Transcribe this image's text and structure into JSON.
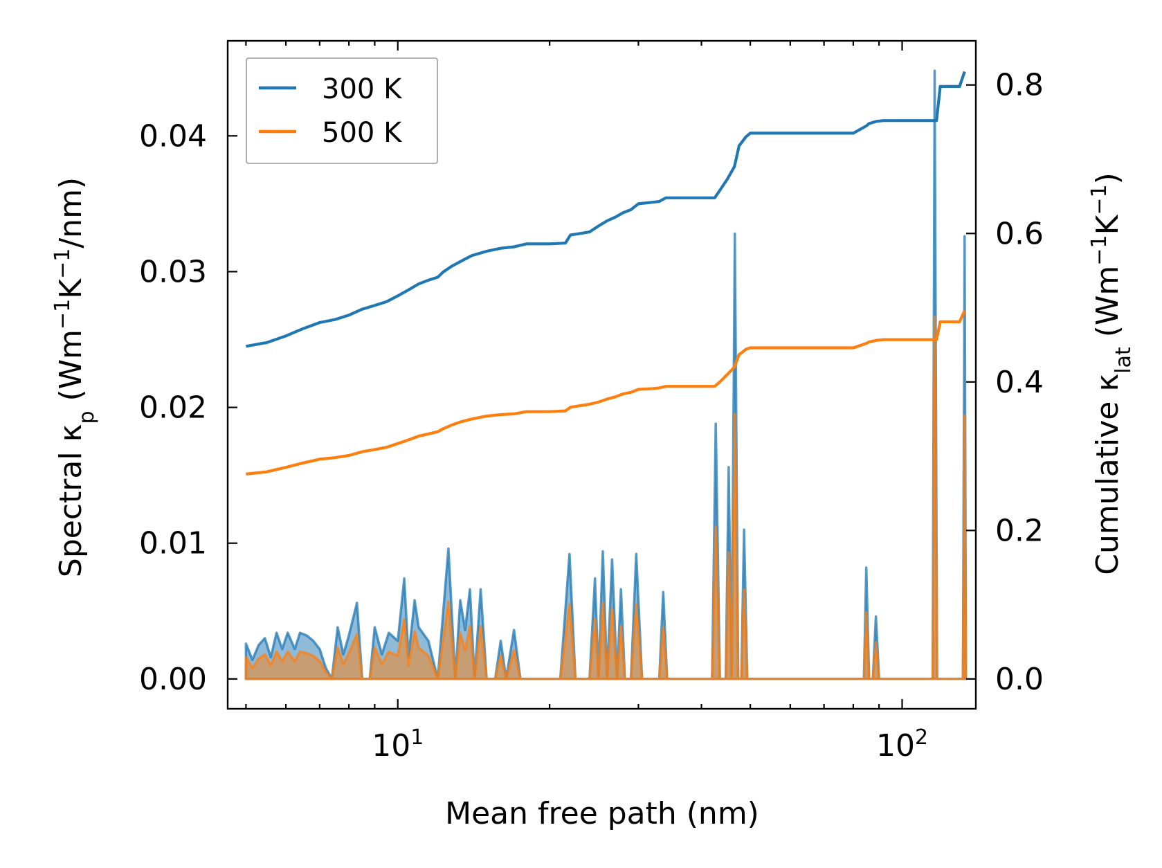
{
  "chart_data": {
    "type": "line",
    "title": "",
    "xlabel": "Mean free path (nm)",
    "ylabel_left": "Spectral κp (Wm⁻¹K⁻¹/nm)",
    "ylabel_right": "Cumulative κlat (Wm⁻¹K⁻¹)",
    "xscale": "log",
    "xlim": [
      4.6,
      140
    ],
    "ylim_left": [
      -0.0022,
      0.047
    ],
    "ylim_right": [
      -0.0402,
      0.8594
    ],
    "x_ticks": [
      {
        "value": 10,
        "base": "10",
        "exp": "1"
      },
      {
        "value": 100,
        "base": "10",
        "exp": "2"
      }
    ],
    "y_ticks_left": [
      {
        "value": 0.0,
        "label": "0.00"
      },
      {
        "value": 0.01,
        "label": "0.01"
      },
      {
        "value": 0.02,
        "label": "0.02"
      },
      {
        "value": 0.03,
        "label": "0.03"
      },
      {
        "value": 0.04,
        "label": "0.04"
      }
    ],
    "y_ticks_right": [
      {
        "value": 0.0,
        "label": "0.0"
      },
      {
        "value": 0.2,
        "label": "0.2"
      },
      {
        "value": 0.4,
        "label": "0.4"
      },
      {
        "value": 0.6,
        "label": "0.6"
      },
      {
        "value": 0.8,
        "label": "0.8"
      }
    ],
    "legend": {
      "position": "top-left",
      "entries": [
        {
          "label": "300 K",
          "color": "#1f77b4"
        },
        {
          "label": "500 K",
          "color": "#ff7f0e"
        }
      ]
    },
    "cumulative_series": [
      {
        "name": "300 K",
        "color": "#1f77b4",
        "x": [
          5.0,
          5.5,
          6.0,
          6.5,
          7.0,
          7.5,
          8.0,
          8.5,
          9.0,
          9.5,
          10.0,
          10.5,
          11.0,
          11.5,
          12.0,
          12.3,
          12.8,
          13.3,
          14.0,
          15.0,
          16.0,
          17.0,
          18.0,
          20.0,
          21.5,
          22.0,
          23.0,
          24.0,
          25.0,
          26.0,
          27.0,
          28.0,
          29.0,
          30.0,
          32.0,
          33.0,
          34.0,
          40.0,
          42.5,
          43.5,
          45.0,
          46.5,
          47.5,
          48.0,
          49.0,
          50.0,
          55.0,
          60.0,
          70.0,
          80.0,
          85.0,
          86.0,
          89.0,
          92.0,
          100.0,
          117.0,
          119.0,
          121.0,
          130.0,
          133.0
        ],
        "cumulative": [
          0.448,
          0.453,
          0.462,
          0.472,
          0.48,
          0.484,
          0.49,
          0.498,
          0.503,
          0.508,
          0.516,
          0.524,
          0.532,
          0.537,
          0.541,
          0.548,
          0.556,
          0.562,
          0.57,
          0.576,
          0.58,
          0.582,
          0.586,
          0.586,
          0.587,
          0.598,
          0.6,
          0.602,
          0.61,
          0.617,
          0.622,
          0.628,
          0.632,
          0.64,
          0.642,
          0.643,
          0.648,
          0.648,
          0.648,
          0.658,
          0.673,
          0.69,
          0.718,
          0.722,
          0.73,
          0.735,
          0.735,
          0.735,
          0.735,
          0.735,
          0.745,
          0.748,
          0.751,
          0.752,
          0.752,
          0.752,
          0.798,
          0.798,
          0.798,
          0.818
        ]
      },
      {
        "name": "500 K",
        "color": "#ff7f0e",
        "x": [
          5.0,
          5.5,
          6.0,
          6.5,
          7.0,
          7.5,
          8.0,
          8.5,
          9.0,
          9.5,
          10.0,
          10.5,
          11.0,
          11.5,
          12.0,
          12.3,
          12.8,
          13.3,
          14.0,
          15.0,
          16.0,
          17.0,
          18.0,
          20.0,
          21.5,
          22.0,
          23.0,
          24.0,
          25.0,
          26.0,
          27.0,
          28.0,
          29.0,
          30.0,
          32.0,
          33.0,
          34.0,
          40.0,
          42.5,
          43.5,
          45.0,
          46.5,
          47.5,
          48.0,
          49.0,
          50.0,
          55.0,
          60.0,
          70.0,
          80.0,
          85.0,
          86.0,
          89.0,
          92.0,
          100.0,
          117.0,
          119.0,
          121.0,
          130.0,
          133.0
        ],
        "cumulative": [
          0.276,
          0.279,
          0.285,
          0.291,
          0.296,
          0.298,
          0.301,
          0.306,
          0.309,
          0.312,
          0.317,
          0.322,
          0.327,
          0.33,
          0.333,
          0.337,
          0.342,
          0.346,
          0.35,
          0.354,
          0.356,
          0.357,
          0.36,
          0.36,
          0.361,
          0.366,
          0.368,
          0.37,
          0.373,
          0.377,
          0.38,
          0.384,
          0.386,
          0.39,
          0.391,
          0.392,
          0.394,
          0.394,
          0.394,
          0.4,
          0.41,
          0.42,
          0.437,
          0.439,
          0.444,
          0.446,
          0.446,
          0.446,
          0.446,
          0.446,
          0.452,
          0.454,
          0.456,
          0.457,
          0.457,
          0.457,
          0.481,
          0.481,
          0.481,
          0.496
        ]
      }
    ],
    "spectral_series": [
      {
        "name": "300 K",
        "color": "#1f77b4",
        "fill_alpha": 0.5,
        "points": [
          [
            5.0,
            0.0026
          ],
          [
            5.15,
            0.0014
          ],
          [
            5.3,
            0.0025
          ],
          [
            5.45,
            0.003
          ],
          [
            5.6,
            0.0016
          ],
          [
            5.75,
            0.0034
          ],
          [
            5.9,
            0.0022
          ],
          [
            6.05,
            0.0034
          ],
          [
            6.25,
            0.0022
          ],
          [
            6.4,
            0.0034
          ],
          [
            6.6,
            0.0032
          ],
          [
            6.8,
            0.0028
          ],
          [
            7.0,
            0.0022
          ],
          [
            7.2,
            0.0008
          ],
          [
            7.4,
            0.0
          ],
          [
            7.6,
            0.0038
          ],
          [
            7.8,
            0.0018
          ],
          [
            8.0,
            0.0032
          ],
          [
            8.3,
            0.0056
          ],
          [
            8.5,
            0.0
          ],
          [
            8.8,
            0.0
          ],
          [
            9.0,
            0.0038
          ],
          [
            9.3,
            0.0018
          ],
          [
            9.6,
            0.0034
          ],
          [
            10.0,
            0.0028
          ],
          [
            10.3,
            0.0074
          ],
          [
            10.5,
            0.0016
          ],
          [
            10.8,
            0.0058
          ],
          [
            11.0,
            0.0038
          ],
          [
            11.5,
            0.0028
          ],
          [
            12.0,
            0.0
          ],
          [
            12.6,
            0.0096
          ],
          [
            13.0,
            0.0
          ],
          [
            13.3,
            0.0058
          ],
          [
            13.6,
            0.0036
          ],
          [
            13.9,
            0.0066
          ],
          [
            14.2,
            0.0
          ],
          [
            14.6,
            0.0066
          ],
          [
            15.0,
            0.0
          ],
          [
            15.6,
            0.0
          ],
          [
            16.0,
            0.0028
          ],
          [
            16.4,
            0.0
          ],
          [
            17.0,
            0.0036
          ],
          [
            17.5,
            0.0
          ],
          [
            21.0,
            0.0
          ],
          [
            21.9,
            0.0092
          ],
          [
            22.5,
            0.0
          ],
          [
            24.0,
            0.0
          ],
          [
            24.6,
            0.0074
          ],
          [
            25.0,
            0.0
          ],
          [
            25.5,
            0.0094
          ],
          [
            26.0,
            0.0
          ],
          [
            26.6,
            0.0088
          ],
          [
            27.2,
            0.0
          ],
          [
            27.7,
            0.0066
          ],
          [
            28.2,
            0.0
          ],
          [
            29.0,
            0.0
          ],
          [
            29.7,
            0.0092
          ],
          [
            30.5,
            0.0
          ],
          [
            33.0,
            0.0
          ],
          [
            33.6,
            0.0064
          ],
          [
            34.2,
            0.0
          ],
          [
            42.0,
            0.0
          ],
          [
            42.7,
            0.0188
          ],
          [
            43.5,
            0.0
          ],
          [
            44.7,
            0.0
          ],
          [
            45.3,
            0.0156
          ],
          [
            45.9,
            0.0
          ],
          [
            46.6,
            0.0328
          ],
          [
            47.3,
            0.0
          ],
          [
            48.0,
            0.0
          ],
          [
            48.6,
            0.011
          ],
          [
            49.3,
            0.0
          ],
          [
            84.0,
            0.0
          ],
          [
            84.9,
            0.0082
          ],
          [
            86.0,
            0.0
          ],
          [
            87.5,
            0.0
          ],
          [
            88.7,
            0.0046
          ],
          [
            90.0,
            0.0
          ],
          [
            115.0,
            0.0
          ],
          [
            116.0,
            0.0448
          ],
          [
            117.3,
            0.0
          ],
          [
            132.0,
            0.0
          ],
          [
            133.0,
            0.0326
          ],
          [
            133.8,
            0.0
          ]
        ]
      },
      {
        "name": "500 K",
        "color": "#ff7f0e",
        "fill_alpha": 0.5,
        "points": [
          [
            5.0,
            0.0016
          ],
          [
            5.15,
            0.0008
          ],
          [
            5.3,
            0.0015
          ],
          [
            5.45,
            0.0018
          ],
          [
            5.6,
            0.001
          ],
          [
            5.75,
            0.002
          ],
          [
            5.9,
            0.0013
          ],
          [
            6.05,
            0.002
          ],
          [
            6.25,
            0.0013
          ],
          [
            6.4,
            0.002
          ],
          [
            6.6,
            0.0019
          ],
          [
            6.8,
            0.0017
          ],
          [
            7.0,
            0.0013
          ],
          [
            7.2,
            0.0005
          ],
          [
            7.4,
            0.0
          ],
          [
            7.6,
            0.0023
          ],
          [
            7.8,
            0.0011
          ],
          [
            8.0,
            0.0019
          ],
          [
            8.3,
            0.0033
          ],
          [
            8.5,
            0.0
          ],
          [
            8.8,
            0.0
          ],
          [
            9.0,
            0.0023
          ],
          [
            9.3,
            0.0011
          ],
          [
            9.6,
            0.002
          ],
          [
            10.0,
            0.0017
          ],
          [
            10.3,
            0.0044
          ],
          [
            10.5,
            0.001
          ],
          [
            10.8,
            0.0035
          ],
          [
            11.0,
            0.0023
          ],
          [
            11.5,
            0.0017
          ],
          [
            12.0,
            0.0
          ],
          [
            12.6,
            0.0057
          ],
          [
            13.0,
            0.0
          ],
          [
            13.3,
            0.0034
          ],
          [
            13.6,
            0.0021
          ],
          [
            13.9,
            0.0039
          ],
          [
            14.2,
            0.0
          ],
          [
            14.6,
            0.0039
          ],
          [
            15.0,
            0.0
          ],
          [
            15.6,
            0.0
          ],
          [
            16.0,
            0.0017
          ],
          [
            16.4,
            0.0
          ],
          [
            17.0,
            0.0021
          ],
          [
            17.5,
            0.0
          ],
          [
            21.0,
            0.0
          ],
          [
            21.9,
            0.0055
          ],
          [
            22.5,
            0.0
          ],
          [
            24.0,
            0.0
          ],
          [
            24.6,
            0.0044
          ],
          [
            25.0,
            0.0
          ],
          [
            25.5,
            0.0056
          ],
          [
            26.0,
            0.0
          ],
          [
            26.6,
            0.0052
          ],
          [
            27.2,
            0.0
          ],
          [
            27.7,
            0.0039
          ],
          [
            28.2,
            0.0
          ],
          [
            29.0,
            0.0
          ],
          [
            29.7,
            0.0055
          ],
          [
            30.5,
            0.0
          ],
          [
            33.0,
            0.0
          ],
          [
            33.6,
            0.0038
          ],
          [
            34.2,
            0.0
          ],
          [
            42.0,
            0.0
          ],
          [
            42.7,
            0.0112
          ],
          [
            43.5,
            0.0
          ],
          [
            44.7,
            0.0
          ],
          [
            45.3,
            0.0093
          ],
          [
            45.9,
            0.0
          ],
          [
            46.6,
            0.0195
          ],
          [
            47.3,
            0.0
          ],
          [
            48.0,
            0.0
          ],
          [
            48.6,
            0.0066
          ],
          [
            49.3,
            0.0
          ],
          [
            84.0,
            0.0
          ],
          [
            84.9,
            0.0049
          ],
          [
            86.0,
            0.0
          ],
          [
            87.5,
            0.0
          ],
          [
            88.7,
            0.0027
          ],
          [
            90.0,
            0.0
          ],
          [
            115.0,
            0.0
          ],
          [
            116.0,
            0.0267
          ],
          [
            117.3,
            0.0
          ],
          [
            132.0,
            0.0
          ],
          [
            133.0,
            0.0194
          ],
          [
            133.8,
            0.0
          ]
        ]
      }
    ]
  }
}
